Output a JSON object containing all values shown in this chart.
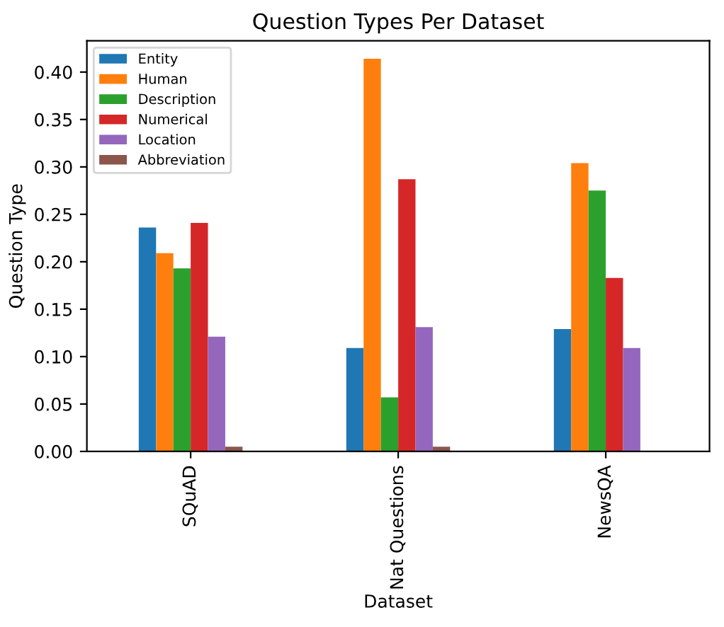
{
  "chart_data": {
    "type": "bar",
    "title": "Question Types Per Dataset",
    "xlabel": "Dataset",
    "ylabel": "Question Type",
    "categories": [
      "SQuAD",
      "Nat Questions",
      "NewsQA"
    ],
    "series": [
      {
        "name": "Entity",
        "color": "#1f77b4",
        "values": [
          0.236,
          0.109,
          0.129
        ]
      },
      {
        "name": "Human",
        "color": "#ff7f0e",
        "values": [
          0.209,
          0.414,
          0.304
        ]
      },
      {
        "name": "Description",
        "color": "#2ca02c",
        "values": [
          0.193,
          0.057,
          0.275
        ]
      },
      {
        "name": "Numerical",
        "color": "#d62728",
        "values": [
          0.241,
          0.287,
          0.183
        ]
      },
      {
        "name": "Location",
        "color": "#9467bd",
        "values": [
          0.121,
          0.131,
          0.109
        ]
      },
      {
        "name": "Abbreviation",
        "color": "#8c564b",
        "values": [
          0.005,
          0.005,
          0
        ]
      }
    ],
    "ylim": [
      0,
      0.433
    ],
    "yticks": [
      {
        "value": 0,
        "label": "0.00"
      },
      {
        "value": 0.05,
        "label": "0.05"
      },
      {
        "value": 0.1,
        "label": "0.10"
      },
      {
        "value": 0.15,
        "label": "0.15"
      },
      {
        "value": 0.2,
        "label": "0.20"
      },
      {
        "value": 0.25,
        "label": "0.25"
      },
      {
        "value": 0.3,
        "label": "0.30"
      },
      {
        "value": 0.35,
        "label": "0.35"
      },
      {
        "value": 0.4,
        "label": "0.40"
      }
    ],
    "grid": false,
    "legend": "top left"
  }
}
